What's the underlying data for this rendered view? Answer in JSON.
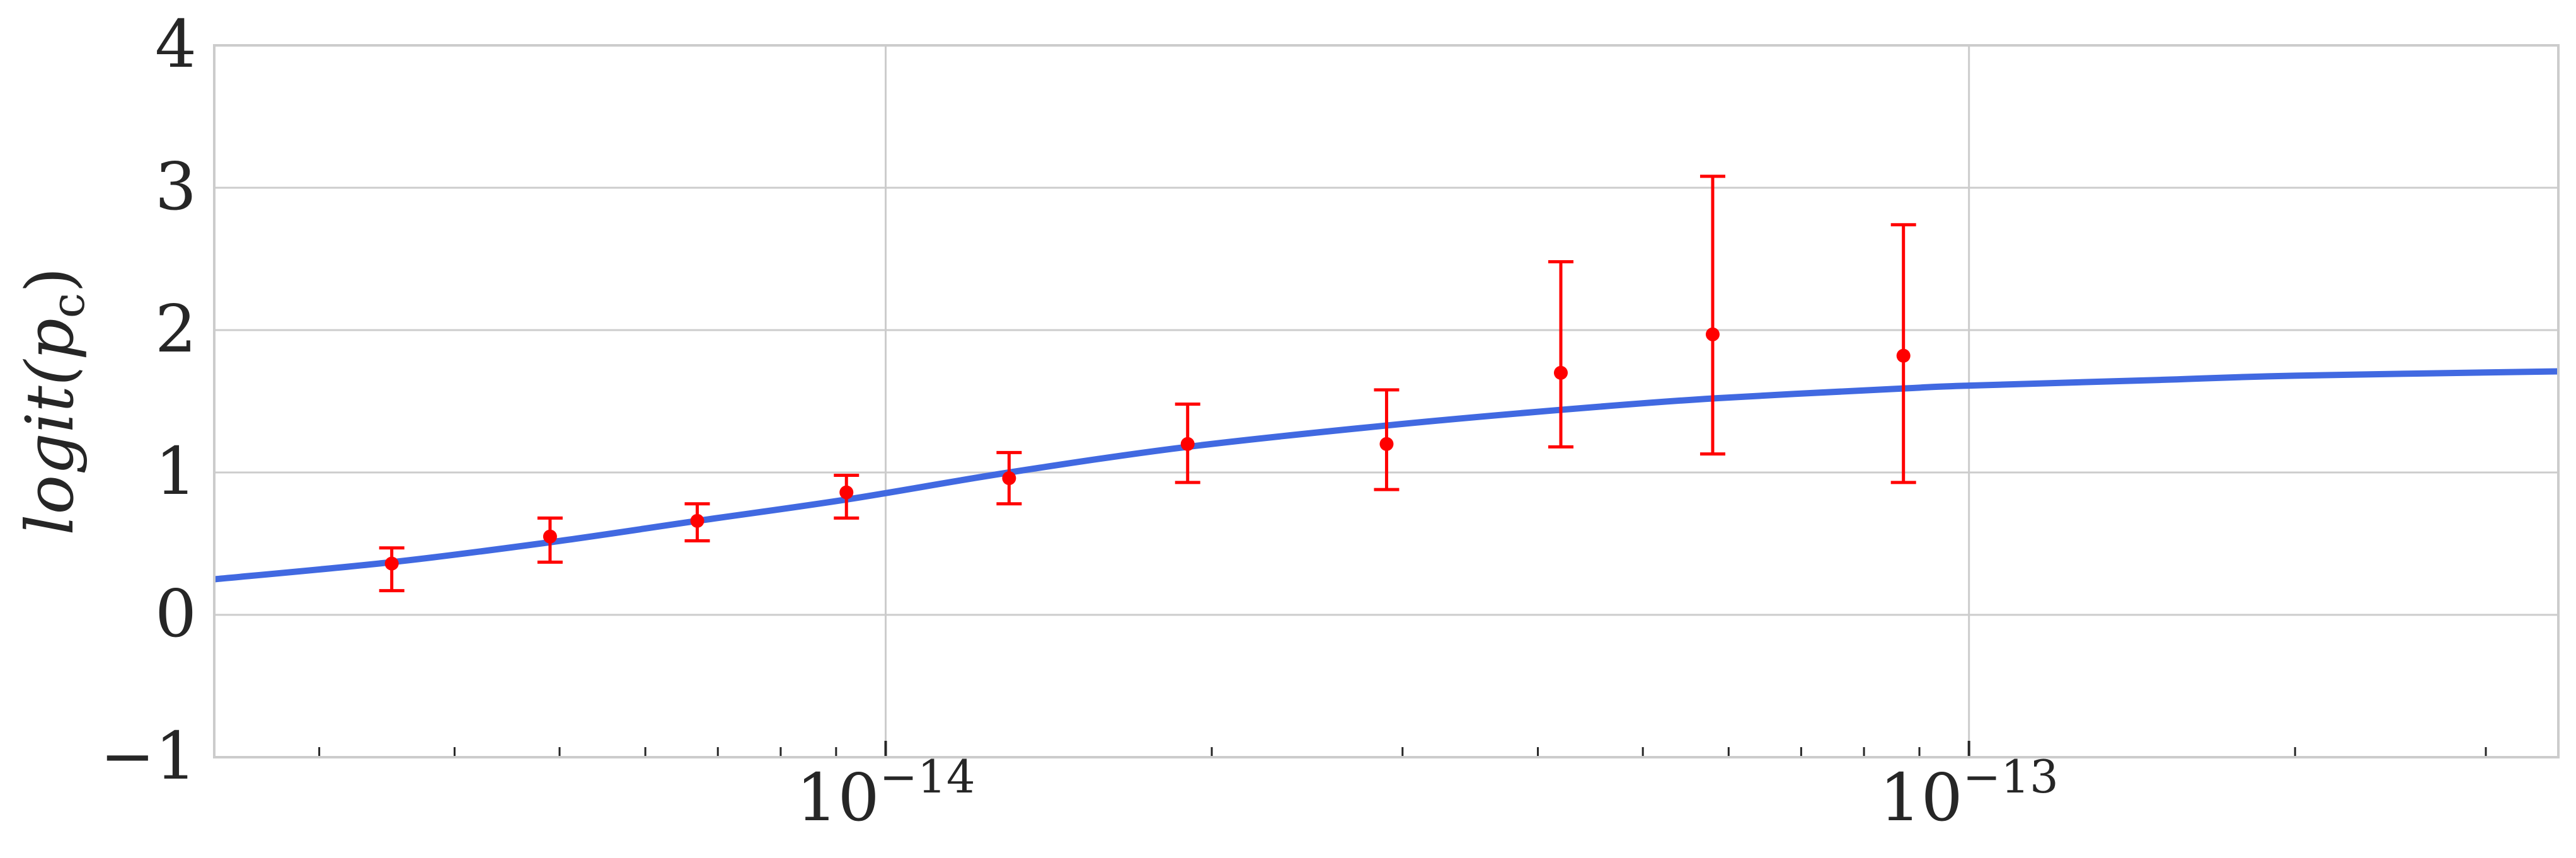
{
  "chart_data": {
    "type": "scatter",
    "xscale": "log",
    "xlim": [
      2.4e-15,
      3.5e-13
    ],
    "ylim": [
      -1,
      4
    ],
    "grid": true,
    "ylabel": {
      "main": "logit(",
      "italic_var": "p",
      "sub": "c",
      "close": ")"
    },
    "yticks": [
      {
        "value": -1,
        "label": "−1"
      },
      {
        "value": 0,
        "label": "0"
      },
      {
        "value": 1,
        "label": "1"
      },
      {
        "value": 2,
        "label": "2"
      },
      {
        "value": 3,
        "label": "3"
      },
      {
        "value": 4,
        "label": "4"
      }
    ],
    "xticks": [
      {
        "value": 1e-14,
        "base": "10",
        "exp": "−14"
      },
      {
        "value": 1e-13,
        "base": "10",
        "exp": "−13"
      }
    ],
    "series": [
      {
        "kind": "errorbar",
        "color": "#ff0000",
        "points": [
          {
            "x": 3.5e-15,
            "y": 0.36,
            "lo": 0.17,
            "hi": 0.47
          },
          {
            "x": 4.9e-15,
            "y": 0.55,
            "lo": 0.37,
            "hi": 0.68
          },
          {
            "x": 6.7e-15,
            "y": 0.66,
            "lo": 0.52,
            "hi": 0.78
          },
          {
            "x": 9.2e-15,
            "y": 0.86,
            "lo": 0.68,
            "hi": 0.98
          },
          {
            "x": 1.3e-14,
            "y": 0.96,
            "lo": 0.78,
            "hi": 1.14
          },
          {
            "x": 1.9e-14,
            "y": 1.2,
            "lo": 0.93,
            "hi": 1.48
          },
          {
            "x": 2.9e-14,
            "y": 1.2,
            "lo": 0.88,
            "hi": 1.58
          },
          {
            "x": 4.2e-14,
            "y": 1.7,
            "lo": 1.18,
            "hi": 2.48
          },
          {
            "x": 5.8e-14,
            "y": 1.97,
            "lo": 1.13,
            "hi": 3.08
          },
          {
            "x": 8.7e-14,
            "y": 1.82,
            "lo": 0.93,
            "hi": 2.74
          }
        ]
      },
      {
        "kind": "line",
        "color": "#4169e1",
        "curve": [
          {
            "x": 2.4e-15,
            "y": 0.25
          },
          {
            "x": 3.5e-15,
            "y": 0.37
          },
          {
            "x": 4.9e-15,
            "y": 0.51
          },
          {
            "x": 6.7e-15,
            "y": 0.66
          },
          {
            "x": 9.2e-15,
            "y": 0.81
          },
          {
            "x": 1.3e-14,
            "y": 1.0
          },
          {
            "x": 1.9e-14,
            "y": 1.18
          },
          {
            "x": 2.9e-14,
            "y": 1.33
          },
          {
            "x": 4.2e-14,
            "y": 1.44
          },
          {
            "x": 5.8e-14,
            "y": 1.52
          },
          {
            "x": 8.7e-14,
            "y": 1.59
          },
          {
            "x": 1e-13,
            "y": 1.61
          },
          {
            "x": 1.5e-13,
            "y": 1.65
          },
          {
            "x": 2e-13,
            "y": 1.68
          },
          {
            "x": 3.5e-13,
            "y": 1.71
          }
        ]
      }
    ]
  }
}
